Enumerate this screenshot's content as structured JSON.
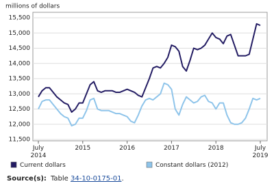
{
  "chart_data": {
    "type": "line",
    "y_axis_label": "millions of dollars",
    "categories": [
      "July 2014",
      null,
      null,
      null,
      null,
      null,
      null,
      null,
      null,
      null,
      null,
      null,
      "2015",
      null,
      null,
      null,
      null,
      null,
      null,
      null,
      null,
      null,
      null,
      null,
      "2016",
      null,
      null,
      null,
      null,
      null,
      null,
      null,
      null,
      null,
      null,
      null,
      "2017",
      null,
      null,
      null,
      null,
      null,
      null,
      null,
      null,
      null,
      null,
      null,
      "2018",
      null,
      null,
      null,
      null,
      null,
      null,
      null,
      null,
      null,
      null,
      null,
      "July 2019"
    ],
    "series": [
      {
        "name": "Current dollars",
        "color": "#231c63",
        "values": [
          12900,
          13100,
          13200,
          13200,
          13050,
          12900,
          12800,
          12700,
          12650,
          12400,
          12500,
          12700,
          12700,
          13000,
          13300,
          13400,
          13100,
          13050,
          13100,
          13100,
          13100,
          13050,
          13050,
          13100,
          13150,
          13100,
          13050,
          12950,
          12900,
          13200,
          13500,
          13850,
          13900,
          13850,
          14000,
          14200,
          14600,
          14550,
          14400,
          13900,
          13750,
          14100,
          14500,
          14450,
          14500,
          14600,
          14800,
          15000,
          14850,
          14800,
          14650,
          14900,
          14950,
          14600,
          14250,
          14250,
          14250,
          14300,
          14800,
          15300,
          15250
        ]
      },
      {
        "name": "Constant dollars (2012)",
        "color": "#8ec4ea",
        "values": [
          12500,
          12750,
          12800,
          12800,
          12650,
          12500,
          12350,
          12250,
          12200,
          11950,
          12000,
          12200,
          12200,
          12450,
          12800,
          12850,
          12500,
          12450,
          12450,
          12450,
          12400,
          12350,
          12350,
          12300,
          12250,
          12100,
          12050,
          12300,
          12600,
          12800,
          12850,
          12800,
          12900,
          13000,
          13350,
          13300,
          13150,
          12500,
          12300,
          12650,
          12900,
          12800,
          12700,
          12750,
          12900,
          12950,
          12750,
          12700,
          12500,
          12700,
          12700,
          12300,
          12050,
          12000,
          12000,
          12050,
          12200,
          12500,
          12850,
          12800,
          12850
        ]
      }
    ],
    "ylim": [
      11500,
      15500
    ],
    "yticks": [
      {
        "value": 11500,
        "label": "11,500"
      },
      {
        "value": 12000,
        "label": "12,000"
      },
      {
        "value": 12500,
        "label": "12,500"
      },
      {
        "value": 13000,
        "label": "13,000"
      },
      {
        "value": 13500,
        "label": "13,500"
      },
      {
        "value": 14000,
        "label": "14,000"
      },
      {
        "value": 14500,
        "label": "14,500"
      },
      {
        "value": 15000,
        "label": "15,000"
      },
      {
        "value": 15500,
        "label": "15,500"
      }
    ],
    "grid": true,
    "source_label": "Source(s):",
    "source_table": "Table",
    "source_link": "34-10-0175-01",
    "source_end": "."
  }
}
